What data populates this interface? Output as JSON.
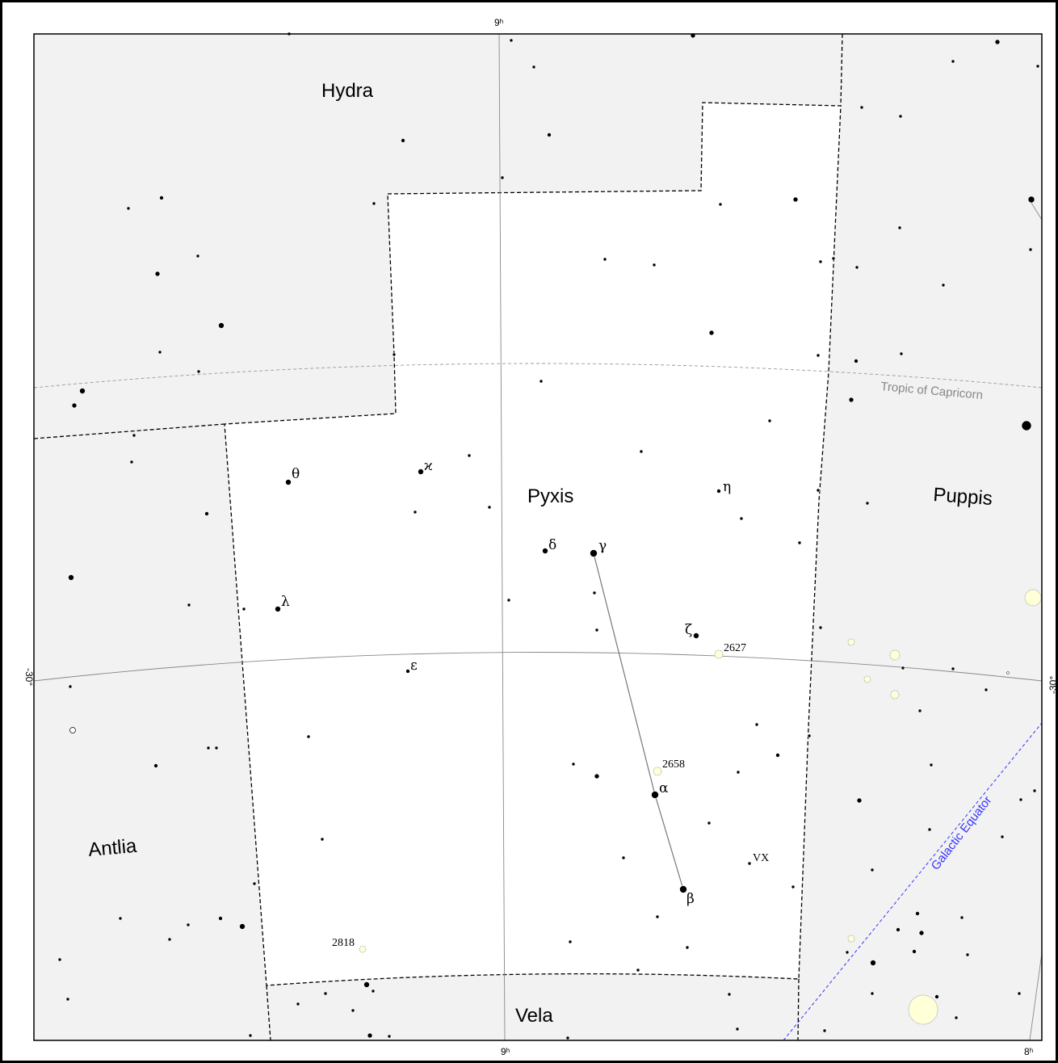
{
  "constellations": [
    "Hydra",
    "Pyxis",
    "Puppis",
    "Antlia",
    "Vela"
  ],
  "stars": [
    "θ",
    "ϰ",
    "η",
    "δ",
    "γ",
    "λ",
    "ζ",
    "ε",
    "α",
    "β"
  ],
  "objects": [
    "2627",
    "2658",
    "2818"
  ],
  "variable": "VX",
  "grid": {
    "ra_top": "9ʰ",
    "ra_bottom": "9ʰ",
    "ra_bottom_right": "8ʰ",
    "dec_left": "-30°",
    "dec_right": "-30°"
  },
  "lines": {
    "tropic": "Tropic of Capricorn",
    "galactic": "Galactic Equator"
  }
}
